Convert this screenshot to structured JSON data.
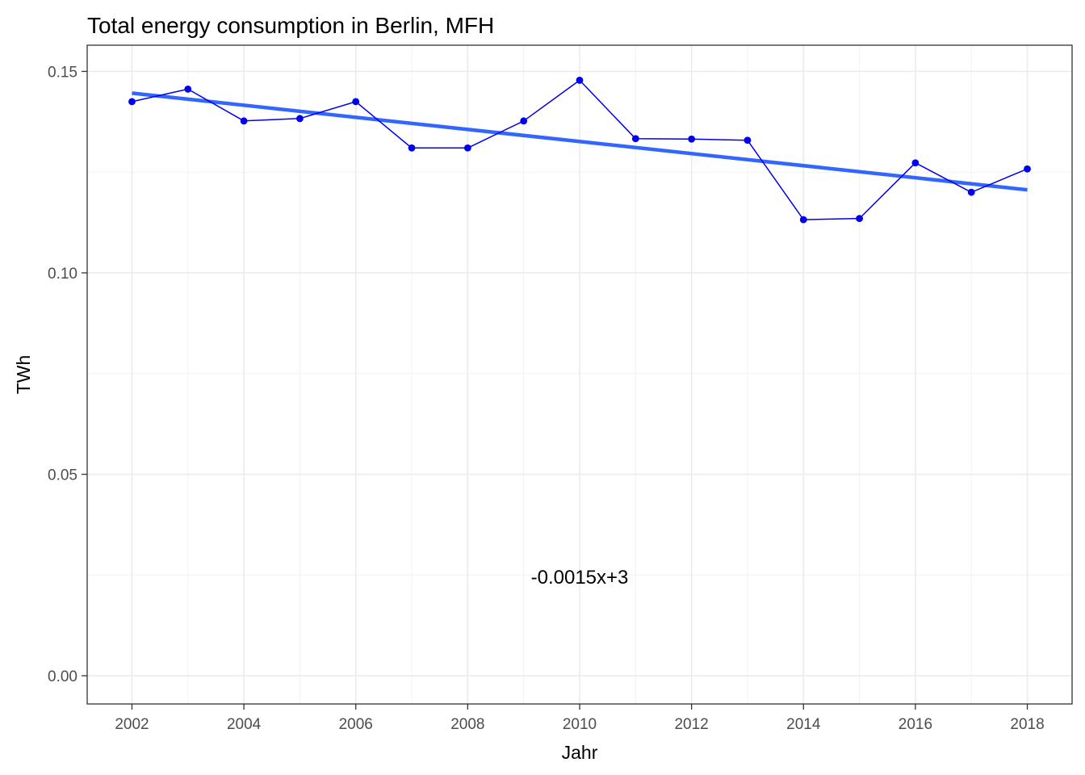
{
  "chart_data": {
    "type": "line",
    "title": "Total energy consumption in Berlin, MFH",
    "xlabel": "Jahr",
    "ylabel": "TWh",
    "xlim": [
      2001.2,
      2018.8
    ],
    "ylim": [
      -0.007,
      0.1565
    ],
    "x_ticks": [
      2002,
      2004,
      2006,
      2008,
      2010,
      2012,
      2014,
      2016,
      2018
    ],
    "x_tick_labels": [
      "2002",
      "2004",
      "2006",
      "2008",
      "2010",
      "2012",
      "2014",
      "2016",
      "2018"
    ],
    "y_ticks": [
      0.0,
      0.05,
      0.1,
      0.15
    ],
    "y_tick_labels": [
      "0.00",
      "0.05",
      "0.10",
      "0.15"
    ],
    "grid": true,
    "series": [
      {
        "x": [
          2002,
          2003,
          2004,
          2005,
          2006,
          2007,
          2008,
          2009,
          2010,
          2011,
          2012,
          2013,
          2014,
          2015,
          2016,
          2017,
          2018
        ],
        "values": [
          0.1425,
          0.1456,
          0.1377,
          0.1383,
          0.1425,
          0.131,
          0.131,
          0.1377,
          0.1478,
          0.1333,
          0.1332,
          0.1329,
          0.1132,
          0.1135,
          0.1273,
          0.12,
          0.1258
        ],
        "color": "#0000ee"
      }
    ],
    "trendline": {
      "x": [
        2002,
        2018
      ],
      "values": [
        0.1446,
        0.1206
      ],
      "color": "#3366ff"
    },
    "annotation": {
      "text": "-0.0015x+3",
      "x": 2010,
      "y": 0.0245
    }
  }
}
